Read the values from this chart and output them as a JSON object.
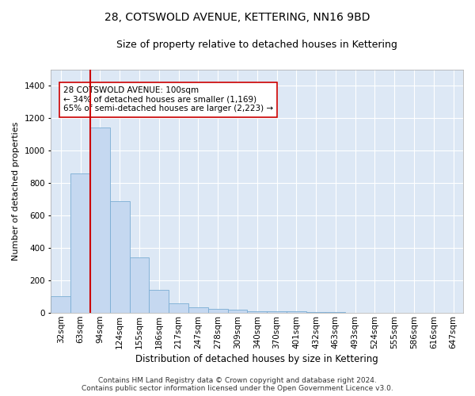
{
  "title": "28, COTSWOLD AVENUE, KETTERING, NN16 9BD",
  "subtitle": "Size of property relative to detached houses in Kettering",
  "xlabel": "Distribution of detached houses by size in Kettering",
  "ylabel": "Number of detached properties",
  "bar_labels": [
    "32sqm",
    "63sqm",
    "94sqm",
    "124sqm",
    "155sqm",
    "186sqm",
    "217sqm",
    "247sqm",
    "278sqm",
    "309sqm",
    "340sqm",
    "370sqm",
    "401sqm",
    "432sqm",
    "463sqm",
    "493sqm",
    "524sqm",
    "555sqm",
    "586sqm",
    "616sqm",
    "647sqm"
  ],
  "bar_values": [
    103,
    860,
    1145,
    690,
    340,
    140,
    60,
    33,
    25,
    20,
    10,
    10,
    10,
    5,
    5,
    3,
    3,
    0,
    0,
    0,
    0
  ],
  "bar_color": "#c5d8f0",
  "bar_edge_color": "#7aadd4",
  "bg_color": "#dde8f5",
  "grid_color": "#ffffff",
  "vline_color": "#cc0000",
  "vline_xindex": 2,
  "annotation_text": "28 COTSWOLD AVENUE: 100sqm\n← 34% of detached houses are smaller (1,169)\n65% of semi-detached houses are larger (2,223) →",
  "annotation_box_facecolor": "#ffffff",
  "annotation_box_edgecolor": "#cc0000",
  "ylim": [
    0,
    1500
  ],
  "yticks": [
    0,
    200,
    400,
    600,
    800,
    1000,
    1200,
    1400
  ],
  "fig_facecolor": "#ffffff",
  "title_fontsize": 10,
  "subtitle_fontsize": 9,
  "xlabel_fontsize": 8.5,
  "ylabel_fontsize": 8,
  "tick_fontsize": 7.5,
  "annotation_fontsize": 7.5,
  "footer_fontsize": 6.5,
  "footer": "Contains HM Land Registry data © Crown copyright and database right 2024.\nContains public sector information licensed under the Open Government Licence v3.0."
}
